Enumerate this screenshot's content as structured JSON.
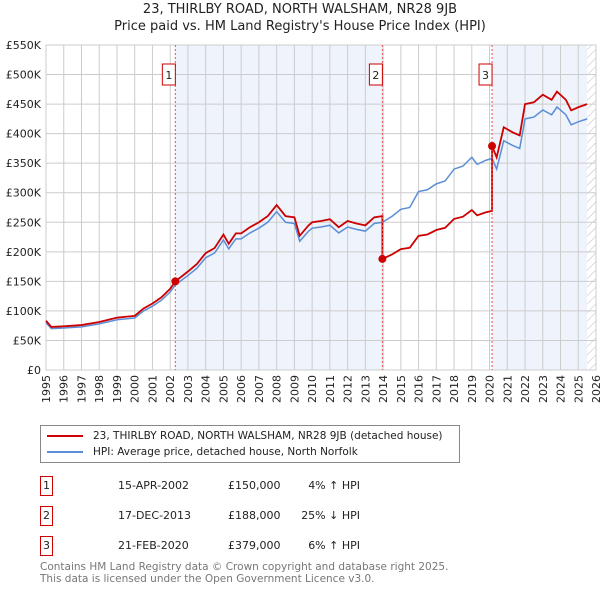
{
  "title": "23, THIRLBY ROAD, NORTH WALSHAM, NR28 9JB",
  "subtitle": "Price paid vs. HM Land Registry's House Price Index (HPI)",
  "chart_data": {
    "type": "line",
    "xlim": [
      1995,
      2026
    ],
    "ylim": [
      0,
      550000
    ],
    "x_ticks": [
      "1995",
      "1996",
      "1997",
      "1998",
      "1999",
      "2000",
      "2001",
      "2002",
      "2003",
      "2004",
      "2005",
      "2006",
      "2007",
      "2008",
      "2009",
      "2010",
      "2011",
      "2012",
      "2013",
      "2014",
      "2015",
      "2016",
      "2017",
      "2018",
      "2019",
      "2020",
      "2021",
      "2022",
      "2023",
      "2024",
      "2025",
      "2026"
    ],
    "y_ticks": [
      {
        "v": 0,
        "l": "£0"
      },
      {
        "v": 50000,
        "l": "£50K"
      },
      {
        "v": 100000,
        "l": "£100K"
      },
      {
        "v": 150000,
        "l": "£150K"
      },
      {
        "v": 200000,
        "l": "£200K"
      },
      {
        "v": 250000,
        "l": "£250K"
      },
      {
        "v": 300000,
        "l": "£300K"
      },
      {
        "v": 350000,
        "l": "£350K"
      },
      {
        "v": 400000,
        "l": "£400K"
      },
      {
        "v": 450000,
        "l": "£450K"
      },
      {
        "v": 500000,
        "l": "£500K"
      },
      {
        "v": 550000,
        "l": "£550K"
      }
    ],
    "grid": true,
    "hatched_from": 2025.5,
    "series": [
      {
        "name": "HPI: Average price, detached house, North Norfolk",
        "color": "#5b8ed6",
        "x": [
          1995,
          1995.3,
          1996,
          1997,
          1998,
          1999,
          2000,
          2000.5,
          2001,
          2001.5,
          2002,
          2002.29,
          2003,
          2003.5,
          2004,
          2004.5,
          2005,
          2005.3,
          2005.7,
          2006,
          2006.5,
          2007,
          2007.5,
          2008,
          2008.5,
          2009,
          2009.3,
          2009.8,
          2010,
          2010.5,
          2011,
          2011.5,
          2012,
          2012.5,
          2013,
          2013.5,
          2013.96,
          2014.5,
          2015,
          2015.5,
          2016,
          2016.5,
          2017,
          2017.5,
          2018,
          2018.5,
          2019,
          2019.3,
          2019.8,
          2020.14,
          2020.4,
          2020.8,
          2021.3,
          2021.7,
          2022,
          2022.5,
          2023,
          2023.5,
          2023.8,
          2024.3,
          2024.6,
          2025,
          2025.5
        ],
        "y": [
          80000,
          70000,
          71000,
          73000,
          78000,
          85000,
          88000,
          100000,
          108000,
          118000,
          132000,
          144000,
          160000,
          172000,
          190000,
          198000,
          220000,
          205000,
          222000,
          222000,
          232000,
          240000,
          250000,
          268000,
          250000,
          248000,
          218000,
          235000,
          240000,
          242000,
          245000,
          232000,
          242000,
          238000,
          235000,
          248000,
          250000,
          260000,
          272000,
          275000,
          302000,
          305000,
          315000,
          320000,
          340000,
          345000,
          360000,
          348000,
          355000,
          358000,
          340000,
          388000,
          380000,
          375000,
          425000,
          428000,
          440000,
          432000,
          445000,
          432000,
          415000,
          420000,
          425000
        ]
      },
      {
        "name": "23, THIRLBY ROAD, NORTH WALSHAM, NR28 9JB (detached house)",
        "color": "#cc0000"
      }
    ],
    "sales": [
      {
        "n": "1",
        "x": 2002.29,
        "date": "15-APR-2002",
        "price": "£150,000",
        "value": 150000,
        "hpi": "4% ↑ HPI"
      },
      {
        "n": "2",
        "x": 2013.96,
        "date": "17-DEC-2013",
        "price": "£188,000",
        "value": 188000,
        "hpi": "25% ↓ HPI"
      },
      {
        "n": "3",
        "x": 2020.14,
        "date": "21-FEB-2020",
        "price": "£379,000",
        "value": 379000,
        "hpi": "6% ↑ HPI"
      }
    ]
  },
  "footer": [
    "Contains HM Land Registry data © Crown copyright and database right 2025.",
    "This data is licensed under the Open Government Licence v3.0."
  ]
}
